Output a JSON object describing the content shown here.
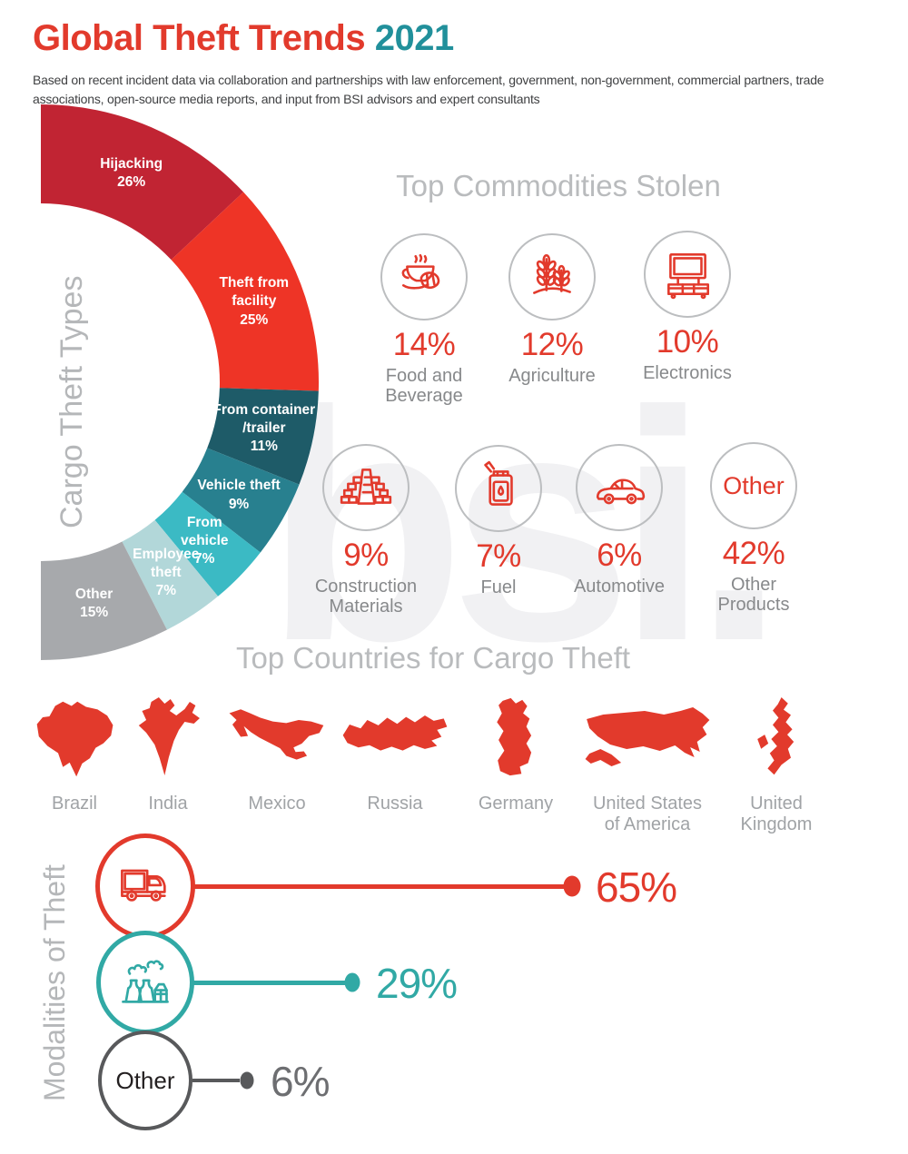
{
  "header": {
    "title_main": "Global Theft Trends",
    "title_year": "2021",
    "subtitle": "Based on recent incident data via collaboration and partnerships with law enforcement, government, non-government, commercial partners, trade associations, open-source media reports, and input from BSI advisors and expert consultants"
  },
  "watermark": "bsi.",
  "colors": {
    "accent_red": "#e23a2c",
    "accent_teal": "#31a9a5",
    "year_teal": "#21909b",
    "header_gray": "#b9bbbd",
    "label_gray": "#87898b",
    "country_label_gray": "#a0a3a6",
    "other_dark_gray": "#58595b"
  },
  "donut_section": {
    "side_label": "Cargo Theft Types"
  },
  "commodities_section": {
    "title": "Top Commodities Stolen"
  },
  "countries_section": {
    "title": "Top Countries for Cargo Theft",
    "items": [
      {
        "name": "Brazil",
        "lines": [
          "Brazil"
        ],
        "shape": "brazil-map"
      },
      {
        "name": "India",
        "lines": [
          "India"
        ],
        "shape": "india-map"
      },
      {
        "name": "Mexico",
        "lines": [
          "Mexico"
        ],
        "shape": "mexico-map"
      },
      {
        "name": "Russia",
        "lines": [
          "Russia"
        ],
        "shape": "russia-map"
      },
      {
        "name": "Germany",
        "lines": [
          "Germany"
        ],
        "shape": "germany-map"
      },
      {
        "name": "United States of America",
        "lines": [
          "United States",
          "of America"
        ],
        "shape": "usa-map"
      },
      {
        "name": "United Kingdom",
        "lines": [
          "United",
          "Kingdom"
        ],
        "shape": "uk-map"
      }
    ]
  },
  "modalities_section": {
    "side_label": "Modalities of Theft"
  },
  "chart_data": [
    {
      "type": "pie",
      "subtype": "half-donut-right",
      "title": "Cargo Theft Types",
      "slices": [
        {
          "label": "Hijacking",
          "value": 26,
          "display": "26%",
          "color": "#c12433",
          "label_lines": [
            "Hijacking",
            "26%"
          ]
        },
        {
          "label": "Theft from facility",
          "value": 25,
          "display": "25%",
          "color": "#ee3426",
          "label_lines": [
            "Theft from",
            "facility",
            "25%"
          ]
        },
        {
          "label": "From container/trailer",
          "value": 11,
          "display": "11%",
          "color": "#1e5b68",
          "label_lines": [
            "From container",
            "/trailer",
            "11%"
          ]
        },
        {
          "label": "Vehicle theft",
          "value": 9,
          "display": "9%",
          "color": "#28808f",
          "label_lines": [
            "Vehicle theft",
            "9%"
          ]
        },
        {
          "label": "From vehicle",
          "value": 7,
          "display": "7%",
          "color": "#3bbac4",
          "label_lines": [
            "From",
            "vehicle",
            "7%"
          ]
        },
        {
          "label": "Employee theft",
          "value": 7,
          "display": "7%",
          "color": "#b2d7d9",
          "label_lines": [
            "Employee",
            "theft",
            "7%"
          ]
        },
        {
          "label": "Other",
          "value": 15,
          "display": "15%",
          "color": "#a7a9ac",
          "label_lines": [
            "Other",
            "15%"
          ]
        }
      ]
    },
    {
      "type": "bar",
      "subtype": "horizontal-lollipop",
      "title": "Modalities of Theft",
      "items": [
        {
          "category": "truck",
          "icon": "truck-icon",
          "circle_text": null,
          "value": 65,
          "display": "65%",
          "color": "#e23a2c",
          "value_color": "#e23a2c"
        },
        {
          "category": "factory",
          "icon": "factory-icon",
          "circle_text": null,
          "value": 29,
          "display": "29%",
          "color": "#31a9a5",
          "value_color": "#31a9a5"
        },
        {
          "category": "other",
          "icon": null,
          "circle_text": "Other",
          "value": 6,
          "display": "6%",
          "color": "#58595b",
          "value_color": "#6d6e71"
        }
      ]
    },
    {
      "type": "pictogram",
      "title": "Top Commodities Stolen",
      "items": [
        {
          "name": "Food and Beverage",
          "lines": [
            "Food and",
            "Beverage"
          ],
          "value": 14,
          "display": "14%",
          "icon": "coffee-croissant-icon",
          "circle_text": null
        },
        {
          "name": "Agriculture",
          "lines": [
            "Agriculture"
          ],
          "value": 12,
          "display": "12%",
          "icon": "wheat-icon",
          "circle_text": null
        },
        {
          "name": "Electronics",
          "lines": [
            "Electronics"
          ],
          "value": 10,
          "display": "10%",
          "icon": "tv-console-icon",
          "circle_text": null
        },
        {
          "name": "Construction Materials",
          "lines": [
            "Construction",
            "Materials"
          ],
          "value": 9,
          "display": "9%",
          "icon": "brick-pyramid-icon",
          "circle_text": null
        },
        {
          "name": "Fuel",
          "lines": [
            "Fuel"
          ],
          "value": 7,
          "display": "7%",
          "icon": "jerry-can-icon",
          "circle_text": null
        },
        {
          "name": "Automotive",
          "lines": [
            "Automotive"
          ],
          "value": 6,
          "display": "6%",
          "icon": "car-icon",
          "circle_text": null
        },
        {
          "name": "Other Products",
          "lines": [
            "Other",
            "Products"
          ],
          "value": 42,
          "display": "42%",
          "icon": null,
          "circle_text": "Other"
        }
      ]
    }
  ]
}
